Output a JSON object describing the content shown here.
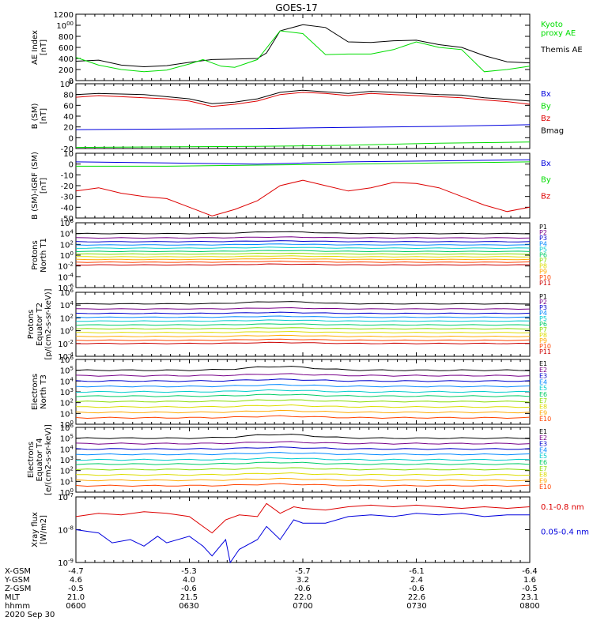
{
  "title": "GOES-17",
  "date": "2020 Sep 30",
  "colors": {
    "black": "#000000",
    "green": "#00dd00",
    "blue": "#0000dd",
    "red": "#dd0000"
  },
  "footer": {
    "rows": [
      {
        "label": "X-GSM",
        "values": [
          "-4.7",
          "-5.3",
          "-5.7",
          "-6.1",
          "-6.4"
        ]
      },
      {
        "label": "Y-GSM",
        "values": [
          "4.6",
          "4.0",
          "3.2",
          "2.4",
          "1.6"
        ]
      },
      {
        "label": "Z-GSM",
        "values": [
          "-0.5",
          "-0.6",
          "-0.6",
          "-0.6",
          "-0.5"
        ]
      },
      {
        "label": "MLT",
        "values": [
          "21.0",
          "21.5",
          "22.0",
          "22.6",
          "23.1"
        ]
      },
      {
        "label": "hhmm",
        "values": [
          "0600",
          "0630",
          "0700",
          "0730",
          "0800"
        ]
      }
    ]
  },
  "chart_data": [
    {
      "type": "line",
      "ylabel": [
        "AE Index",
        "[nT]"
      ],
      "yscale": "linear",
      "ylim": [
        0,
        1200
      ],
      "yticks": [
        "0",
        "200",
        "400",
        "600",
        "800",
        "1000",
        "1200"
      ],
      "legend": [
        {
          "text": [
            "Kyoto",
            "proxy AE"
          ],
          "color": "green"
        },
        {
          "text": [
            "Themis AE"
          ],
          "color": "black"
        }
      ],
      "series": [
        {
          "name": "Themis AE",
          "color": "black",
          "x": [
            0,
            5,
            10,
            15,
            20,
            25,
            30,
            35,
            40,
            42,
            45,
            50,
            55,
            60,
            65,
            70,
            75,
            80,
            85,
            90,
            95,
            100
          ],
          "y": [
            350,
            370,
            280,
            250,
            270,
            330,
            380,
            390,
            400,
            500,
            900,
            1010,
            960,
            700,
            690,
            720,
            730,
            650,
            600,
            450,
            340,
            320
          ]
        },
        {
          "name": "Kyoto proxy AE",
          "color": "green",
          "x": [
            0,
            5,
            10,
            15,
            20,
            25,
            28,
            32,
            35,
            40,
            45,
            50,
            55,
            60,
            65,
            70,
            75,
            80,
            85,
            90,
            95,
            100
          ],
          "y": [
            420,
            280,
            200,
            160,
            190,
            300,
            380,
            260,
            240,
            380,
            900,
            850,
            470,
            480,
            480,
            560,
            700,
            600,
            560,
            160,
            200,
            260
          ]
        }
      ]
    },
    {
      "type": "line",
      "ylabel": [
        "B (SM)",
        "[nT]"
      ],
      "yscale": "linear",
      "ylim": [
        -20,
        100
      ],
      "yticks": [
        "-20",
        "0",
        "20",
        "40",
        "60",
        "80",
        "100"
      ],
      "legend": [
        {
          "text": [
            "Bx"
          ],
          "color": "blue"
        },
        {
          "text": [
            "By"
          ],
          "color": "green"
        },
        {
          "text": [
            "Bz"
          ],
          "color": "red"
        },
        {
          "text": [
            "Bmag"
          ],
          "color": "black"
        }
      ],
      "series": [
        {
          "name": "Bmag",
          "color": "black",
          "x": [
            0,
            5,
            10,
            15,
            20,
            25,
            30,
            35,
            40,
            45,
            50,
            55,
            60,
            65,
            70,
            75,
            80,
            85,
            90,
            95,
            100
          ],
          "y": [
            80,
            82,
            81,
            80,
            76,
            72,
            63,
            66,
            72,
            84,
            88,
            85,
            82,
            86,
            84,
            82,
            80,
            79,
            74,
            71,
            68
          ]
        },
        {
          "name": "Bz",
          "color": "red",
          "x": [
            0,
            5,
            10,
            15,
            20,
            25,
            30,
            35,
            40,
            45,
            50,
            55,
            60,
            65,
            70,
            75,
            80,
            85,
            90,
            95,
            100
          ],
          "y": [
            75,
            78,
            76,
            74,
            72,
            68,
            58,
            62,
            68,
            80,
            84,
            82,
            78,
            82,
            80,
            78,
            76,
            74,
            70,
            67,
            62
          ]
        },
        {
          "name": "Bx",
          "color": "blue",
          "x": [
            0,
            20,
            40,
            60,
            80,
            100
          ],
          "y": [
            15,
            16,
            17,
            19,
            21,
            24
          ]
        },
        {
          "name": "By",
          "color": "green",
          "x": [
            0,
            20,
            40,
            60,
            80,
            100
          ],
          "y": [
            -18,
            -17,
            -16,
            -14,
            -10,
            -8
          ]
        }
      ]
    },
    {
      "type": "line",
      "ylabel": [
        "B (SM)-IGRF (SM)",
        "[nT]"
      ],
      "yscale": "linear",
      "ylim": [
        -50,
        10
      ],
      "yticks": [
        "-50",
        "-40",
        "-30",
        "-20",
        "-10",
        "0",
        "10"
      ],
      "legend": [
        {
          "text": [
            "Bx"
          ],
          "color": "blue"
        },
        {
          "text": [
            "By"
          ],
          "color": "green"
        },
        {
          "text": [
            "Bz"
          ],
          "color": "red"
        }
      ],
      "series": [
        {
          "name": "Bx",
          "color": "blue",
          "x": [
            0,
            20,
            40,
            60,
            80,
            100
          ],
          "y": [
            2,
            1,
            0,
            2,
            3,
            4
          ]
        },
        {
          "name": "By",
          "color": "green",
          "x": [
            0,
            20,
            40,
            60,
            80,
            100
          ],
          "y": [
            -2,
            -2,
            -1,
            0,
            1,
            2
          ]
        },
        {
          "name": "Bz",
          "color": "red",
          "x": [
            0,
            5,
            10,
            15,
            20,
            25,
            30,
            35,
            40,
            45,
            50,
            55,
            60,
            65,
            70,
            75,
            80,
            85,
            90,
            95,
            100
          ],
          "y": [
            -25,
            -22,
            -27,
            -30,
            -32,
            -40,
            -48,
            -42,
            -34,
            -20,
            -15,
            -20,
            -25,
            -22,
            -17,
            -18,
            -22,
            -30,
            -38,
            -44,
            -40
          ]
        }
      ]
    },
    {
      "type": "line",
      "ylabel": [
        "Protons",
        "North T1"
      ],
      "yscale": "log",
      "ylim": [
        -6,
        6
      ],
      "yticks": [
        "10-6",
        "10-4",
        "10-2",
        "100",
        "102",
        "104",
        "106"
      ],
      "legend_spectral": [
        "P1",
        "P2",
        "P3",
        "P4",
        "P5",
        "P6",
        "P7",
        "P8",
        "P9",
        "P10",
        "P11"
      ],
      "series_levels": [
        4.0,
        3.2,
        2.5,
        1.9,
        1.3,
        0.7,
        0.2,
        -0.3,
        -0.8,
        -1.3,
        -1.8
      ]
    },
    {
      "type": "line",
      "ylabel": [
        "Protons",
        "Equator T2",
        "[p/(cm2-s-sr-keV)]"
      ],
      "yscale": "log",
      "ylim": [
        -4,
        6
      ],
      "yticks": [
        "10-4",
        "10-2",
        "100",
        "102",
        "104",
        "106"
      ],
      "legend_spectral": [
        "P1",
        "P2",
        "P3",
        "P4",
        "P5",
        "P6",
        "P7",
        "P8",
        "P9",
        "P10",
        "P11"
      ],
      "series_levels": [
        4.2,
        3.4,
        2.7,
        2.1,
        1.5,
        0.9,
        0.3,
        -0.3,
        -0.9,
        -1.5,
        -2.0
      ]
    },
    {
      "type": "line",
      "ylabel": [
        "Electrons",
        "North T3"
      ],
      "yscale": "log",
      "ylim": [
        0,
        6
      ],
      "yticks": [
        "100",
        "101",
        "102",
        "103",
        "104",
        "105",
        "106"
      ],
      "legend_spectral": [
        "E1",
        "E2",
        "E3",
        "E4",
        "E5",
        "E6",
        "E7",
        "E8",
        "E9",
        "E10"
      ],
      "series_levels": [
        5.0,
        4.5,
        4.0,
        3.5,
        3.0,
        2.6,
        2.1,
        1.6,
        1.1,
        0.6
      ]
    },
    {
      "type": "line",
      "ylabel": [
        "Electrons",
        "Equator T4",
        "[e/(cm2-s-sr-keV)]"
      ],
      "yscale": "log",
      "ylim": [
        0,
        6
      ],
      "yticks": [
        "100",
        "101",
        "102",
        "103",
        "104",
        "105",
        "106"
      ],
      "legend_spectral": [
        "E1",
        "E2",
        "E3",
        "E4",
        "E5",
        "E6",
        "E7",
        "E8",
        "E9",
        "E10"
      ],
      "series_levels": [
        5.0,
        4.5,
        4.0,
        3.5,
        3.0,
        2.6,
        2.1,
        1.6,
        1.1,
        0.6
      ]
    },
    {
      "type": "line",
      "ylabel": [
        "Xray flux",
        "[W/m2]"
      ],
      "yscale": "log",
      "ylim": [
        -9,
        -7
      ],
      "yticks": [
        "10-9",
        "10-8",
        "10-7"
      ],
      "legend": [
        {
          "text": [
            "0.1-0.8 nm"
          ],
          "color": "red"
        },
        {
          "text": [
            "0.05-0.4 nm"
          ],
          "color": "blue"
        }
      ],
      "series": [
        {
          "name": "0.1-0.8 nm",
          "color": "red",
          "x": [
            0,
            5,
            10,
            15,
            20,
            25,
            28,
            30,
            33,
            36,
            40,
            42,
            45,
            48,
            50,
            55,
            60,
            65,
            70,
            75,
            80,
            85,
            90,
            95,
            100
          ],
          "y": [
            -7.6,
            -7.5,
            -7.55,
            -7.45,
            -7.5,
            -7.6,
            -7.9,
            -8.1,
            -7.7,
            -7.55,
            -7.6,
            -7.2,
            -7.5,
            -7.3,
            -7.35,
            -7.4,
            -7.3,
            -7.25,
            -7.3,
            -7.25,
            -7.3,
            -7.35,
            -7.3,
            -7.35,
            -7.3
          ]
        },
        {
          "name": "0.05-0.4 nm",
          "color": "blue",
          "x": [
            0,
            5,
            8,
            12,
            15,
            18,
            20,
            25,
            28,
            30,
            33,
            34,
            36,
            40,
            42,
            45,
            48,
            50,
            55,
            60,
            65,
            70,
            75,
            80,
            85,
            90,
            95,
            100
          ],
          "y": [
            -8.0,
            -8.1,
            -8.4,
            -8.3,
            -8.5,
            -8.2,
            -8.4,
            -8.2,
            -8.5,
            -8.8,
            -8.3,
            -9.0,
            -8.6,
            -8.3,
            -7.9,
            -8.3,
            -7.7,
            -7.8,
            -7.8,
            -7.6,
            -7.55,
            -7.6,
            -7.5,
            -7.55,
            -7.5,
            -7.6,
            -7.55,
            -7.55
          ]
        }
      ]
    }
  ]
}
